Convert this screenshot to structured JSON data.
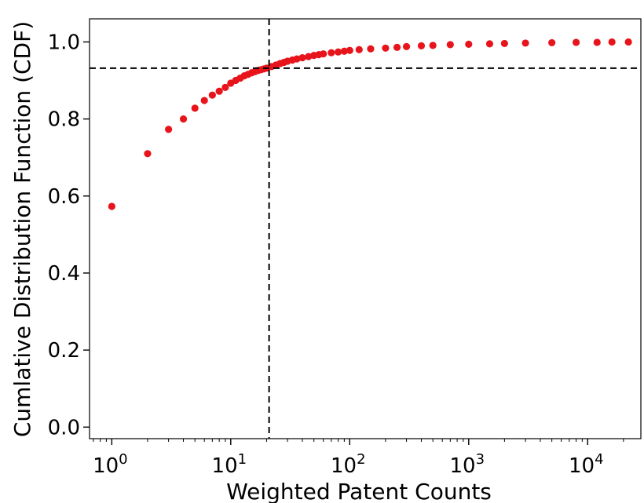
{
  "chart_data": {
    "type": "scatter",
    "title": "",
    "xlabel": "Weighted Patent Counts",
    "ylabel": "Cumlative Distribution Function (CDF)",
    "xscale": "log",
    "xlim": [
      0.65,
      28000
    ],
    "ylim": [
      -0.03,
      1.06
    ],
    "xticks": [
      {
        "value": 1,
        "base": "10",
        "exp": "0"
      },
      {
        "value": 10,
        "base": "10",
        "exp": "1"
      },
      {
        "value": 100,
        "base": "10",
        "exp": "2"
      },
      {
        "value": 1000,
        "base": "10",
        "exp": "3"
      },
      {
        "value": 10000,
        "base": "10",
        "exp": "4"
      }
    ],
    "yticks": [
      "0.0",
      "0.2",
      "0.4",
      "0.6",
      "0.8",
      "1.0"
    ],
    "grid": false,
    "legend": "none",
    "marker_color": "#e8141c",
    "reference_lines": {
      "x": 21,
      "y": 0.932,
      "style": "dashed",
      "color": "#000000"
    },
    "series": [
      {
        "name": "",
        "x": [
          1,
          2,
          3,
          4,
          5,
          6,
          7,
          8,
          9,
          10,
          11,
          12,
          13,
          14,
          15,
          16,
          17,
          18,
          19,
          20,
          22,
          24,
          26,
          28,
          30,
          33,
          36,
          40,
          45,
          50,
          55,
          60,
          70,
          80,
          90,
          100,
          120,
          150,
          200,
          250,
          300,
          400,
          500,
          700,
          1000,
          1500,
          2000,
          3000,
          5000,
          8000,
          12000,
          16000,
          22000
        ],
        "y": [
          0.573,
          0.71,
          0.773,
          0.8,
          0.828,
          0.848,
          0.862,
          0.872,
          0.882,
          0.893,
          0.9,
          0.906,
          0.912,
          0.916,
          0.92,
          0.923,
          0.926,
          0.928,
          0.93,
          0.932,
          0.936,
          0.94,
          0.944,
          0.947,
          0.95,
          0.953,
          0.956,
          0.959,
          0.962,
          0.965,
          0.967,
          0.969,
          0.972,
          0.974,
          0.976,
          0.978,
          0.98,
          0.982,
          0.984,
          0.986,
          0.988,
          0.99,
          0.991,
          0.993,
          0.994,
          0.995,
          0.996,
          0.997,
          0.998,
          0.999,
          0.999,
          1.0,
          1.0
        ]
      }
    ]
  }
}
